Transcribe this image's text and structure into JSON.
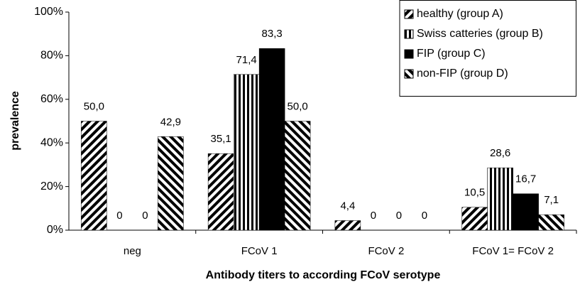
{
  "chart_data": {
    "type": "bar",
    "ylabel": "prevalence",
    "xlabel": "Antibody titers to according FCoV serotype",
    "categories": [
      "neg",
      "FCoV 1",
      "FCoV 2",
      "FCoV 1= FCoV 2"
    ],
    "series": [
      {
        "name": "healthy (group A)",
        "color": "#000000",
        "pattern": "diagonal",
        "values": [
          50.0,
          35.1,
          4.4,
          10.5
        ],
        "value_labels": [
          "50,0",
          "35,1",
          "4,4",
          "10,5"
        ]
      },
      {
        "name": "Swiss catteries (group B)",
        "color": "#000000",
        "pattern": "vertical",
        "values": [
          0,
          71.4,
          0,
          28.6
        ],
        "value_labels": [
          "0",
          "71,4",
          "0",
          "28,6"
        ]
      },
      {
        "name": "FIP (group C)",
        "color": "#000000",
        "pattern": "solid",
        "values": [
          0,
          83.3,
          0,
          16.7
        ],
        "value_labels": [
          "0",
          "83,3",
          "0",
          "16,7"
        ]
      },
      {
        "name": "non-FIP (group D)",
        "color": "#000000",
        "pattern": "backdiagonal",
        "values": [
          42.9,
          50.0,
          0,
          7.1
        ],
        "value_labels": [
          "42,9",
          "50,0",
          "0",
          "7,1"
        ]
      }
    ],
    "ylim": [
      0,
      100
    ],
    "yticks": [
      {
        "value": 0,
        "label": "0%"
      },
      {
        "value": 20,
        "label": "20%"
      },
      {
        "value": 40,
        "label": "40%"
      },
      {
        "value": 60,
        "label": "60%"
      },
      {
        "value": 80,
        "label": "80%"
      },
      {
        "value": 100,
        "label": "100%"
      }
    ],
    "legend": "top-right"
  }
}
